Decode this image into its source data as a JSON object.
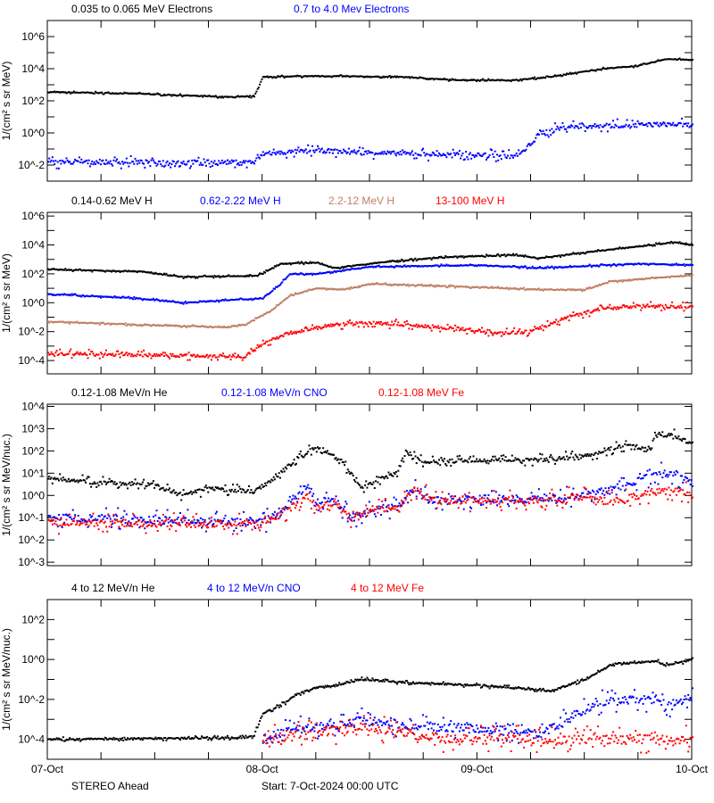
{
  "colors": {
    "black": "#000000",
    "blue": "#0000ff",
    "brown": "#c07e64",
    "red": "#ff0000"
  },
  "footer": {
    "spacecraft": "STEREO Ahead",
    "start": "Start:  7-Oct-2024 00:00 UTC"
  },
  "chart_data": [
    {
      "type": "scatter",
      "ylabel": "1/(cm² s sr MeV)",
      "yscale": "log",
      "ylim": [
        0.001,
        10000000.0
      ],
      "yticks": [
        0.01,
        1.0,
        100.0,
        10000.0,
        1000000.0
      ],
      "ytick_labels": [
        "10^-2",
        "10^0",
        "10^2",
        "10^4",
        "10^6"
      ],
      "xlim": [
        "10-07 00:00",
        "10-10 00:00"
      ],
      "series": [
        {
          "name": "0.035 to 0.065 MeV Electrons",
          "color": "black",
          "points": [
            [
              "10-07 00:00",
              350
            ],
            [
              "10-07 10:00",
              280
            ],
            [
              "10-07 20:00",
              170
            ],
            [
              "10-07 23:00",
              180
            ],
            [
              "10-08 00:00",
              3000
            ],
            [
              "10-08 06:00",
              3500
            ],
            [
              "10-08 16:00",
              3000
            ],
            [
              "10-08 21:00",
              2000
            ],
            [
              "10-09 04:00",
              1900
            ],
            [
              "10-09 08:00",
              3000
            ],
            [
              "10-09 14:00",
              10000
            ],
            [
              "10-09 18:00",
              15000
            ],
            [
              "10-09 21:00",
              40000
            ],
            [
              "10-10 00:00",
              35000
            ]
          ]
        },
        {
          "name": "0.7 to 4.0 Mev Electrons",
          "color": "blue",
          "points": [
            [
              "10-07 00:00",
              0.015
            ],
            [
              "10-07 23:00",
              0.015
            ],
            [
              "10-08 00:00",
              0.05
            ],
            [
              "10-08 06:00",
              0.08
            ],
            [
              "10-08 16:00",
              0.05
            ],
            [
              "10-09 02:00",
              0.04
            ],
            [
              "10-09 04:00",
              0.035
            ],
            [
              "10-09 05:00",
              0.06
            ],
            [
              "10-09 07:00",
              1
            ],
            [
              "10-09 10:00",
              2.5
            ],
            [
              "10-09 17:00",
              3
            ],
            [
              "10-09 21:00",
              3.5
            ],
            [
              "10-10 00:00",
              3
            ]
          ]
        }
      ]
    },
    {
      "type": "scatter",
      "ylabel": "1/(cm² s sr MeV)",
      "yscale": "log",
      "ylim": [
        1.2e-05,
        1800000.0
      ],
      "yticks": [
        0.0001,
        0.01,
        1.0,
        100.0,
        10000.0,
        1000000.0
      ],
      "ytick_labels": [
        "10^-4",
        "10^-2",
        "10^0",
        "10^2",
        "10^4",
        "10^6"
      ],
      "xlim": [
        "10-07 00:00",
        "10-10 00:00"
      ],
      "series": [
        {
          "name": "0.14-0.62 MeV H",
          "color": "black",
          "points": [
            [
              "10-07 00:00",
              200
            ],
            [
              "10-07 10:00",
              150
            ],
            [
              "10-07 15:00",
              60
            ],
            [
              "10-07 22:00",
              70
            ],
            [
              "10-07 23:18",
              70
            ],
            [
              "10-08 02:00",
              500
            ],
            [
              "10-08 06:00",
              600
            ],
            [
              "10-08 08:00",
              250
            ],
            [
              "10-08 14:00",
              700
            ],
            [
              "10-08 21:00",
              1500
            ],
            [
              "10-09 04:00",
              2000
            ],
            [
              "10-09 07:00",
              1200
            ],
            [
              "10-09 12:00",
              3000
            ],
            [
              "10-09 18:00",
              8000
            ],
            [
              "10-09 22:00",
              15000
            ],
            [
              "10-10 00:00",
              10000
            ]
          ]
        },
        {
          "name": "0.62-2.22 MeV H",
          "color": "blue",
          "points": [
            [
              "10-07 00:00",
              4
            ],
            [
              "10-07 10:00",
              2
            ],
            [
              "10-07 15:00",
              1
            ],
            [
              "10-07 20:00",
              1.5
            ],
            [
              "10-08 00:00",
              2
            ],
            [
              "10-08 02:00",
              20
            ],
            [
              "10-08 03:00",
              100
            ],
            [
              "10-08 06:00",
              100
            ],
            [
              "10-08 12:00",
              300
            ],
            [
              "10-09 00:00",
              400
            ],
            [
              "10-09 07:00",
              250
            ],
            [
              "10-09 18:00",
              500
            ],
            [
              "10-10 00:00",
              400
            ]
          ]
        },
        {
          "name": "2.2-12 MeV H",
          "color": "brown",
          "points": [
            [
              "10-07 00:00",
              0.05
            ],
            [
              "10-07 10:00",
              0.03
            ],
            [
              "10-07 20:00",
              0.02
            ],
            [
              "10-07 22:00",
              0.03
            ],
            [
              "10-08 01:00",
              0.3
            ],
            [
              "10-08 03:00",
              3
            ],
            [
              "10-08 06:00",
              10
            ],
            [
              "10-08 09:00",
              8
            ],
            [
              "10-08 12:00",
              20
            ],
            [
              "10-09 00:00",
              12
            ],
            [
              "10-09 07:00",
              8
            ],
            [
              "10-09 12:00",
              8
            ],
            [
              "10-09 15:00",
              30
            ],
            [
              "10-09 21:00",
              60
            ],
            [
              "10-10 00:00",
              80
            ]
          ]
        },
        {
          "name": "13-100 MeV H",
          "color": "red",
          "points": [
            [
              "10-07 00:00",
              0.0003
            ],
            [
              "10-07 20:00",
              0.0002
            ],
            [
              "10-07 22:00",
              0.0002
            ],
            [
              "10-08 01:00",
              0.003
            ],
            [
              "10-08 03:00",
              0.008
            ],
            [
              "10-08 08:00",
              0.03
            ],
            [
              "10-08 12:00",
              0.04
            ],
            [
              "10-08 16:00",
              0.03
            ],
            [
              "10-09 00:00",
              0.012
            ],
            [
              "10-09 03:00",
              0.008
            ],
            [
              "10-09 06:00",
              0.01
            ],
            [
              "10-09 10:00",
              0.1
            ],
            [
              "10-09 14:00",
              0.4
            ],
            [
              "10-09 18:00",
              0.6
            ],
            [
              "10-10 00:00",
              0.5
            ]
          ]
        }
      ]
    },
    {
      "type": "scatter",
      "ylabel": "1/(cm² s sr MeV/nuc.)",
      "yscale": "log",
      "ylim": [
        0.0007,
        12600
      ],
      "yticks": [
        0.001,
        0.01,
        0.1,
        1.0,
        10.0,
        100.0,
        1000.0,
        10000.0
      ],
      "ytick_labels": [
        "10^-3",
        "10^-2",
        "10^-1",
        "10^0",
        "10^1",
        "10^2",
        "10^3",
        "10^4"
      ],
      "xlim": [
        "10-07 00:00",
        "10-10 00:00"
      ],
      "series": [
        {
          "name": "0.12-1.08 MeV/n He",
          "color": "black",
          "points": [
            [
              "10-07 00:00",
              6
            ],
            [
              "10-07 05:00",
              4
            ],
            [
              "10-07 12:00",
              3
            ],
            [
              "10-07 15:00",
              1
            ],
            [
              "10-07 18:00",
              2
            ],
            [
              "10-07 23:00",
              1.5
            ],
            [
              "10-08 01:00",
              5
            ],
            [
              "10-08 04:00",
              50
            ],
            [
              "10-08 06:00",
              150
            ],
            [
              "10-08 07:00",
              100
            ],
            [
              "10-08 09:00",
              30
            ],
            [
              "10-08 11:00",
              2
            ],
            [
              "10-08 13:00",
              5
            ],
            [
              "10-08 15:00",
              10
            ],
            [
              "10-08 16:00",
              100
            ],
            [
              "10-08 18:00",
              30
            ],
            [
              "10-09 00:00",
              40
            ],
            [
              "10-09 07:00",
              40
            ],
            [
              "10-09 12:00",
              60
            ],
            [
              "10-09 17:00",
              200
            ],
            [
              "10-09 19:00",
              100
            ],
            [
              "10-09 20:00",
              500
            ],
            [
              "10-09 22:00",
              500
            ],
            [
              "10-10 00:00",
              200
            ]
          ]
        },
        {
          "name": "0.12-1.08 MeV/n CNO",
          "color": "blue",
          "points": [
            [
              "10-07 00:00",
              0.1
            ],
            [
              "10-08 00:00",
              0.06
            ],
            [
              "10-08 02:00",
              0.2
            ],
            [
              "10-08 05:00",
              3
            ],
            [
              "10-08 06:00",
              0.5
            ],
            [
              "10-08 08:00",
              0.6
            ],
            [
              "10-08 10:00",
              0.1
            ],
            [
              "10-08 12:00",
              0.2
            ],
            [
              "10-08 15:00",
              0.3
            ],
            [
              "10-08 17:00",
              2
            ],
            [
              "10-08 19:00",
              0.6
            ],
            [
              "10-09 00:00",
              0.7
            ],
            [
              "10-09 06:00",
              0.7
            ],
            [
              "10-09 12:00",
              1
            ],
            [
              "10-09 15:00",
              2
            ],
            [
              "10-09 17:00",
              3
            ],
            [
              "10-09 20:00",
              10
            ],
            [
              "10-09 22:00",
              10
            ],
            [
              "10-09 23:00",
              5
            ],
            [
              "10-10 00:00",
              4
            ]
          ]
        },
        {
          "name": "0.12-1.08 MeV Fe",
          "color": "red",
          "points": [
            [
              "10-07 00:00",
              0.06
            ],
            [
              "10-08 00:00",
              0.05
            ],
            [
              "10-08 02:00",
              0.15
            ],
            [
              "10-08 05:00",
              1
            ],
            [
              "10-08 06:00",
              0.3
            ],
            [
              "10-08 08:00",
              0.5
            ],
            [
              "10-08 10:00",
              0.1
            ],
            [
              "10-08 12:00",
              0.2
            ],
            [
              "10-08 15:00",
              0.3
            ],
            [
              "10-08 17:00",
              2
            ],
            [
              "10-08 19:00",
              0.6
            ],
            [
              "10-09 00:00",
              0.6
            ],
            [
              "10-09 06:00",
              0.6
            ],
            [
              "10-09 12:00",
              0.8
            ],
            [
              "10-09 15:00",
              0.5
            ],
            [
              "10-09 18:00",
              1
            ],
            [
              "10-09 22:00",
              2
            ],
            [
              "10-10 00:00",
              1
            ]
          ]
        }
      ]
    },
    {
      "type": "scatter",
      "ylabel": "1/(cm² s sr MeV/nuc.)",
      "yscale": "log",
      "ylim": [
        1e-05,
        1000
      ],
      "yticks": [
        0.0001,
        0.01,
        1.0,
        100.0
      ],
      "ytick_labels": [
        "10^-4",
        "10^-2",
        "10^0",
        "10^2"
      ],
      "xlim": [
        "10-07 00:00",
        "10-10 00:00"
      ],
      "xtick_labels": [
        "07-Oct",
        "08-Oct",
        "09-Oct",
        "10-Oct"
      ],
      "series": [
        {
          "name": "4 to 12 MeV/n He",
          "color": "black",
          "points": [
            [
              "10-07 00:00",
              0.0001
            ],
            [
              "10-07 22:00",
              0.00012
            ],
            [
              "10-07 23:00",
              0.00015
            ],
            [
              "10-08 00:00",
              0.002
            ],
            [
              "10-08 02:00",
              0.005
            ],
            [
              "10-08 04:00",
              0.02
            ],
            [
              "10-08 06:00",
              0.04
            ],
            [
              "10-08 08:00",
              0.05
            ],
            [
              "10-08 11:00",
              0.1
            ],
            [
              "10-08 16:00",
              0.07
            ],
            [
              "10-09 00:00",
              0.05
            ],
            [
              "10-09 07:00",
              0.03
            ],
            [
              "10-09 08:00",
              0.025
            ],
            [
              "10-09 12:00",
              0.1
            ],
            [
              "10-09 14:00",
              0.3
            ],
            [
              "10-09 15:00",
              0.6
            ],
            [
              "10-09 20:00",
              0.8
            ],
            [
              "10-09 21:00",
              0.5
            ],
            [
              "10-10 00:00",
              1
            ]
          ]
        },
        {
          "name": "4 to 12 MeV/n CNO",
          "color": "blue",
          "points": [
            [
              "10-08 00:00",
              0.0001
            ],
            [
              "10-08 03:00",
              0.0003
            ],
            [
              "10-08 08:00",
              0.0005
            ],
            [
              "10-08 11:00",
              0.001
            ],
            [
              "10-08 16:00",
              0.0005
            ],
            [
              "10-09 02:00",
              0.0003
            ],
            [
              "10-09 07:00",
              0.0002
            ],
            [
              "10-09 09:00",
              0.0005
            ],
            [
              "10-09 12:00",
              0.003
            ],
            [
              "10-09 14:00",
              0.008
            ],
            [
              "10-09 20:00",
              0.01
            ],
            [
              "10-09 21:00",
              0.005
            ],
            [
              "10-10 00:00",
              0.012
            ]
          ]
        },
        {
          "name": "4 to 12 MeV Fe",
          "color": "red",
          "points": [
            [
              "10-08 00:00",
              0.0001
            ],
            [
              "10-08 06:00",
              0.0002
            ],
            [
              "10-08 11:00",
              0.0004
            ],
            [
              "10-08 21:00",
              0.0001
            ],
            [
              "10-10 00:00",
              0.0001
            ]
          ]
        }
      ]
    }
  ]
}
